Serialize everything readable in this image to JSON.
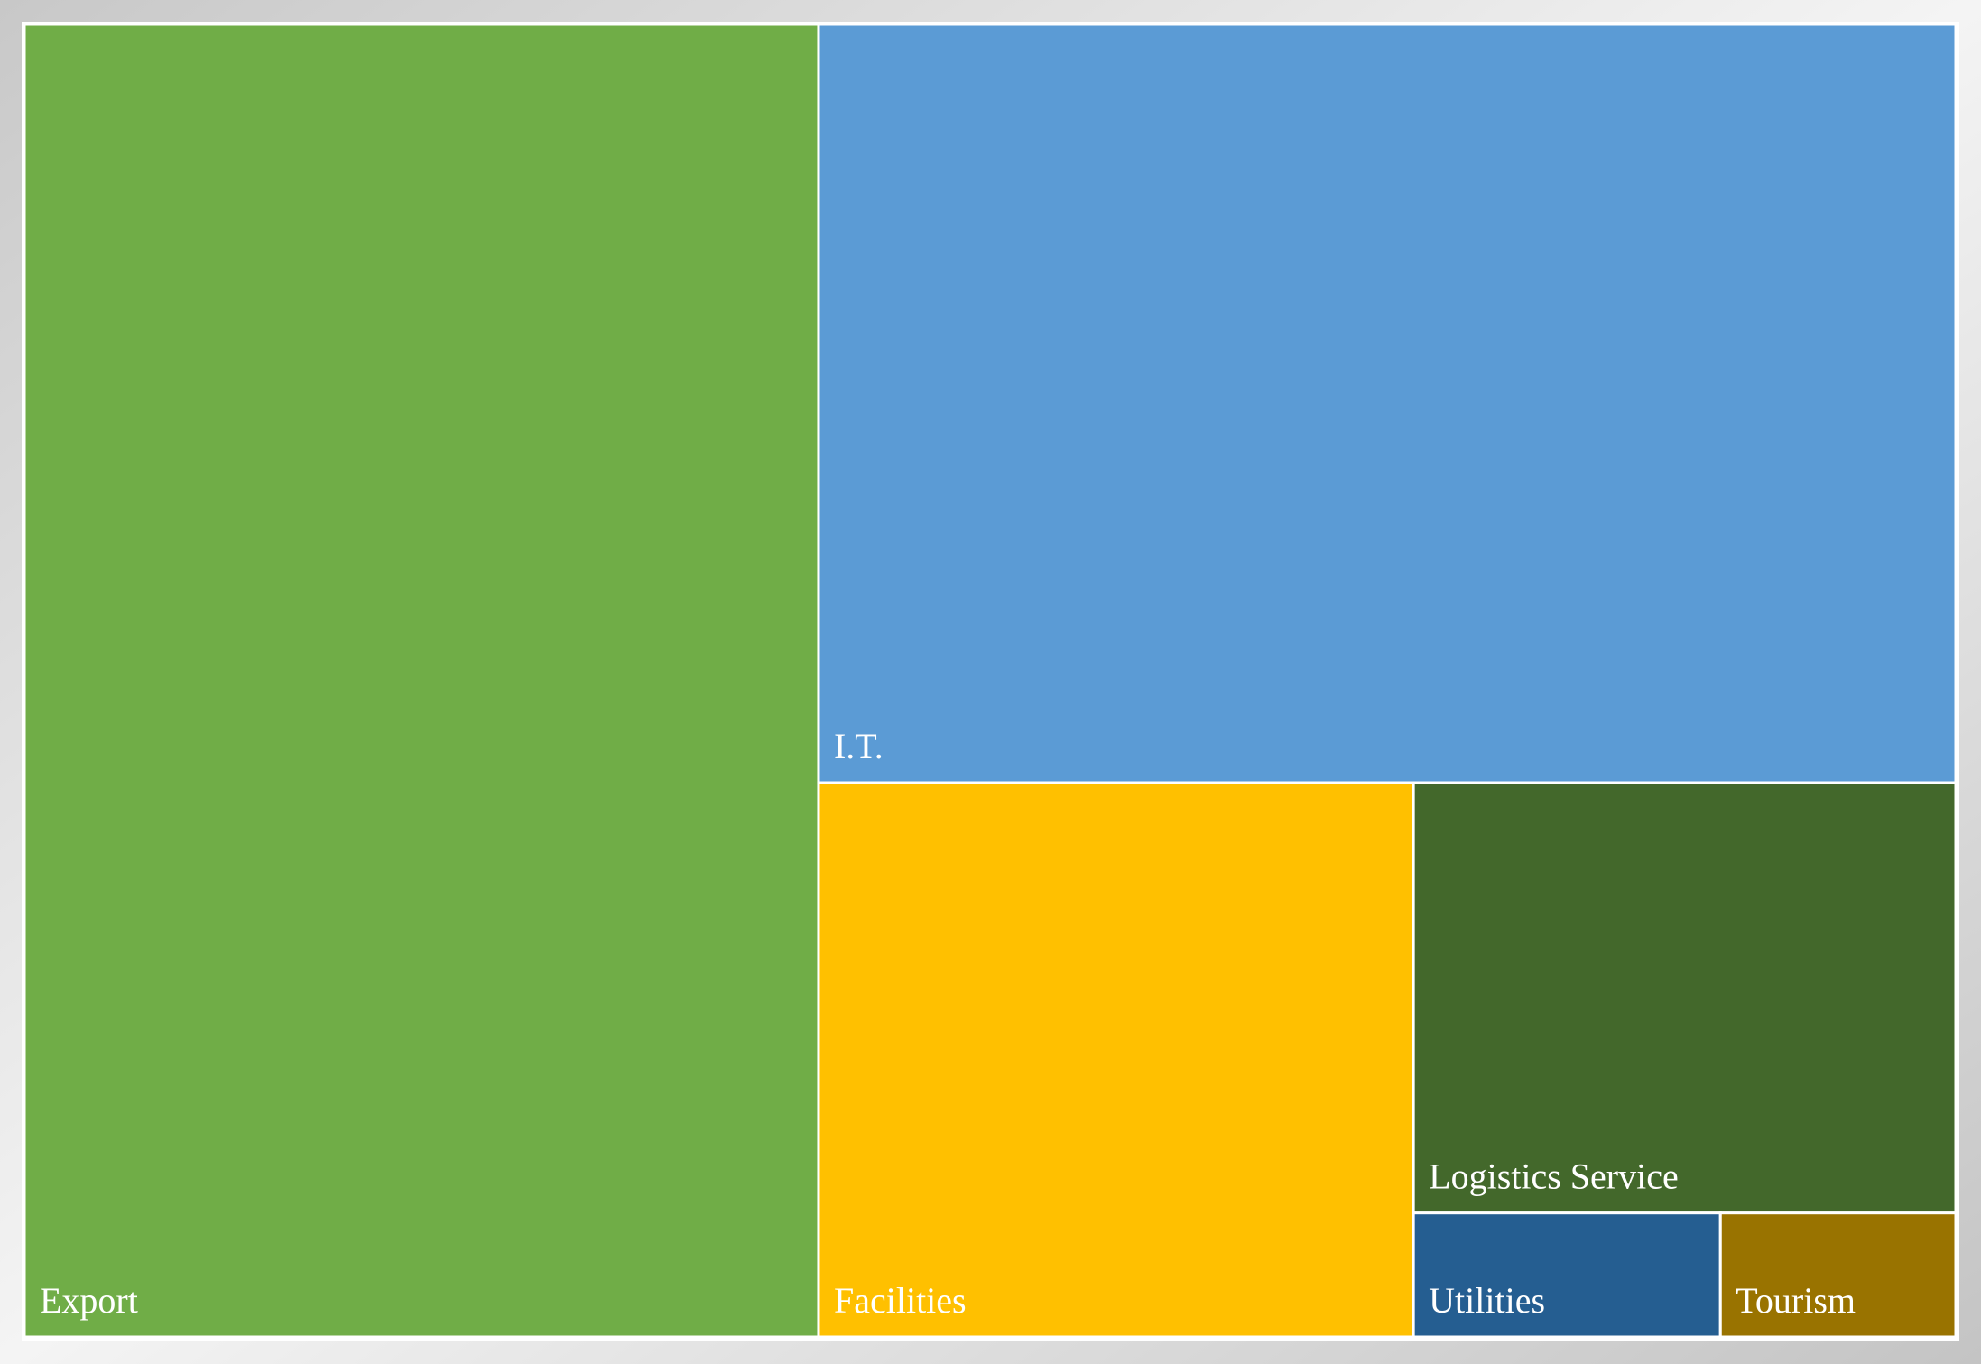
{
  "chart_data": {
    "type": "treemap",
    "categories": [
      "Export",
      "I.T.",
      "Facilities",
      "Logistics Service",
      "Utilities",
      "Tourism"
    ],
    "values": [
      41.1,
      34.0,
      13.0,
      9.2,
      1.5,
      1.15
    ],
    "colors": [
      "#70ad47",
      "#5b9bd5",
      "#ffc000",
      "#43682b",
      "#255e91",
      "#997300"
    ]
  }
}
